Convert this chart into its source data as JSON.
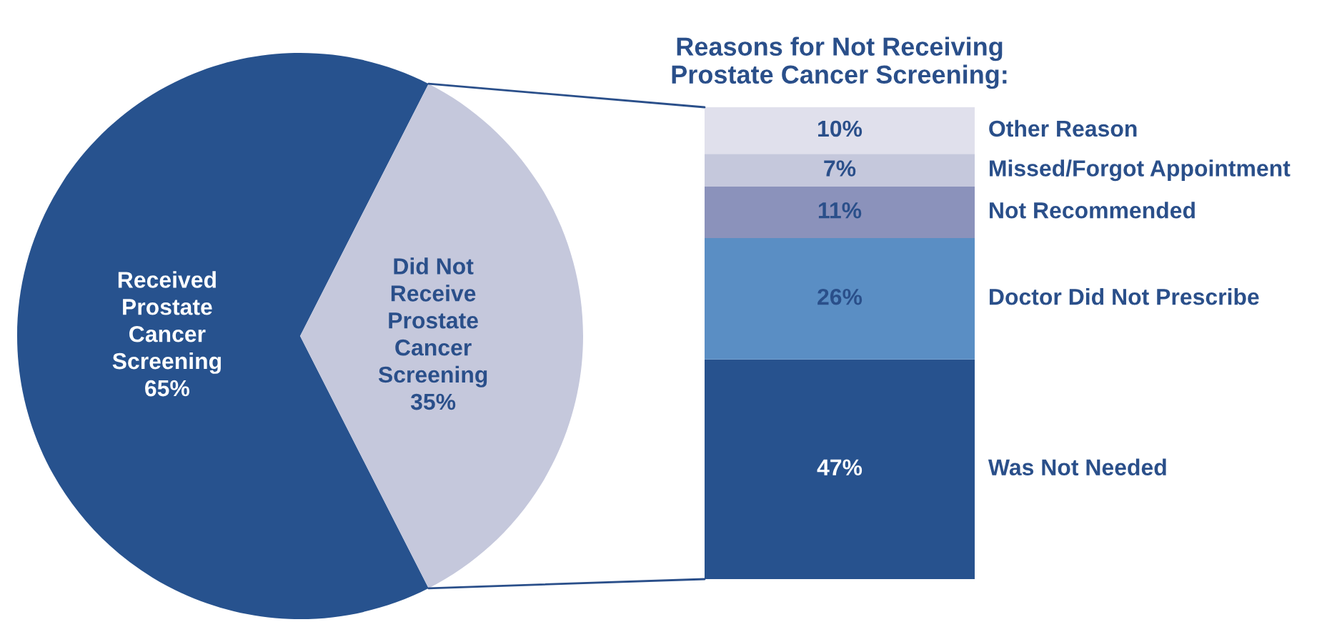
{
  "chart_data": [
    {
      "type": "pie",
      "categories": [
        "Received Prostate Cancer Screening",
        "Did Not Receive Prostate Cancer Screening"
      ],
      "values": [
        65,
        35
      ],
      "value_labels": [
        "65%",
        "35%"
      ],
      "colors": [
        "#27528e",
        "#c5c8dc"
      ]
    },
    {
      "type": "bar",
      "title": "Reasons for Not Receiving Prostate Cancer Screening:",
      "stacked": true,
      "categories": [
        null
      ],
      "series": [
        {
          "name": "Was Not Needed",
          "color": "#27528e",
          "values": [
            47
          ],
          "value_labels": [
            "47%"
          ]
        },
        {
          "name": "Doctor Did Not Prescribe",
          "color": "#5a8ec4",
          "values": [
            26
          ],
          "value_labels": [
            "26%"
          ]
        },
        {
          "name": "Not Recommended",
          "color": "#8b92bb",
          "values": [
            11
          ],
          "value_labels": [
            "11%"
          ]
        },
        {
          "name": "Missed/Forgot Appointment",
          "color": "#c5c8dc",
          "values": [
            7
          ],
          "value_labels": [
            "7%"
          ]
        },
        {
          "name": "Other Reason",
          "color": "#e0e0ec",
          "values": [
            10
          ],
          "value_labels": [
            "10%"
          ]
        }
      ]
    }
  ]
}
